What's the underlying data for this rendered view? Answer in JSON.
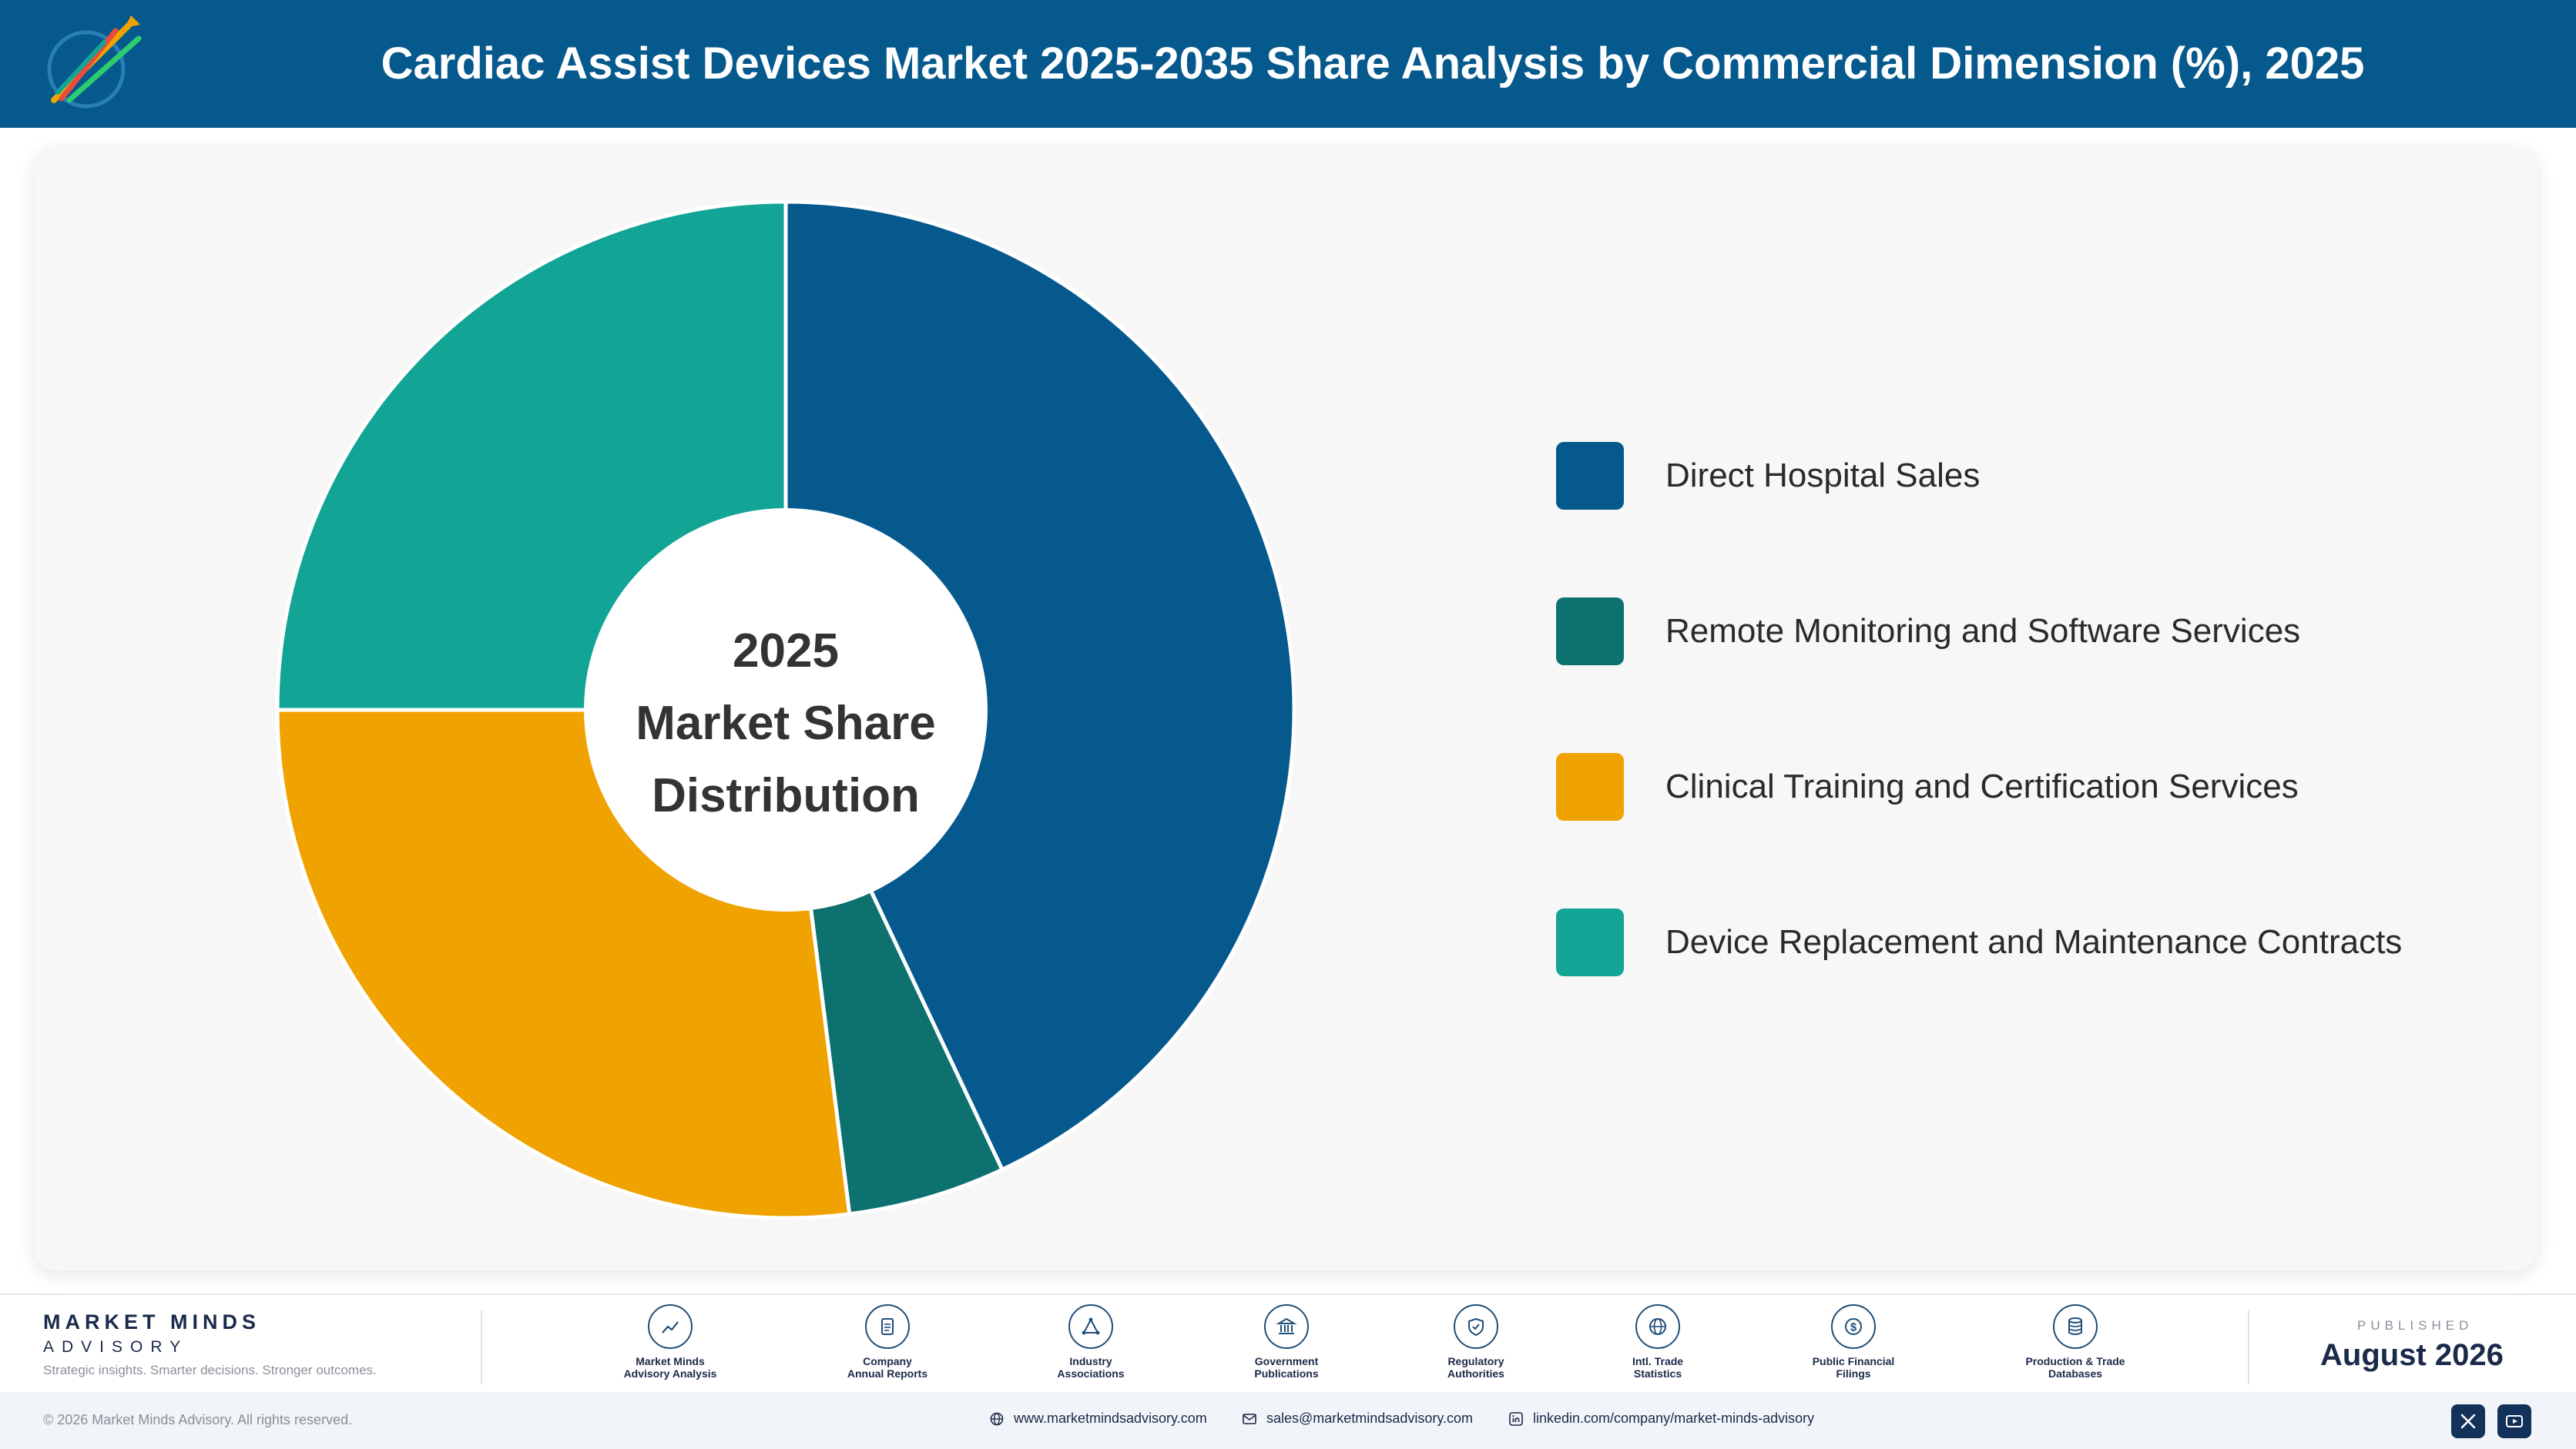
{
  "header": {
    "title": "Cardiac Assist Devices Market 2025-2035 Share Analysis by Commercial Dimension (%), 2025"
  },
  "chart_data": {
    "type": "pie",
    "variant": "donut",
    "center_label": [
      "2025",
      "Market Share",
      "Distribution"
    ],
    "categories": [
      "Direct Hospital Sales",
      "Remote Monitoring and Software Services",
      "Clinical Training and Certification Services",
      "Device Replacement and Maintenance Contracts"
    ],
    "values": [
      43,
      5,
      27,
      25
    ],
    "colors": [
      "#05598d",
      "#0d7170",
      "#f0a300",
      "#12a595"
    ],
    "legend_position": "right"
  },
  "footer": {
    "brand_name": "MARKET MINDS",
    "brand_sub": "ADVISORY",
    "tagline": "Strategic insights. Smarter decisions. Stronger outcomes.",
    "sources": [
      {
        "label": "Market Minds\nAdvisory Analysis",
        "icon": "chart-line-icon"
      },
      {
        "label": "Company\nAnnual Reports",
        "icon": "document-icon"
      },
      {
        "label": "Industry\nAssociations",
        "icon": "network-icon"
      },
      {
        "label": "Government\nPublications",
        "icon": "building-icon"
      },
      {
        "label": "Regulatory\nAuthorities",
        "icon": "shield-icon"
      },
      {
        "label": "Intl. Trade\nStatistics",
        "icon": "globe-icon"
      },
      {
        "label": "Public Financial\nFilings",
        "icon": "dollar-icon"
      },
      {
        "label": "Production & Trade\nDatabases",
        "icon": "database-icon"
      }
    ],
    "published_label": "PUBLISHED",
    "published_date": "August 2026",
    "copyright": "© 2026 Market Minds Advisory. All rights reserved.",
    "website": "www.marketmindsadvisory.com",
    "email": "sales@marketmindsadvisory.com",
    "linkedin": "linkedin.com/company/market-minds-advisory"
  }
}
